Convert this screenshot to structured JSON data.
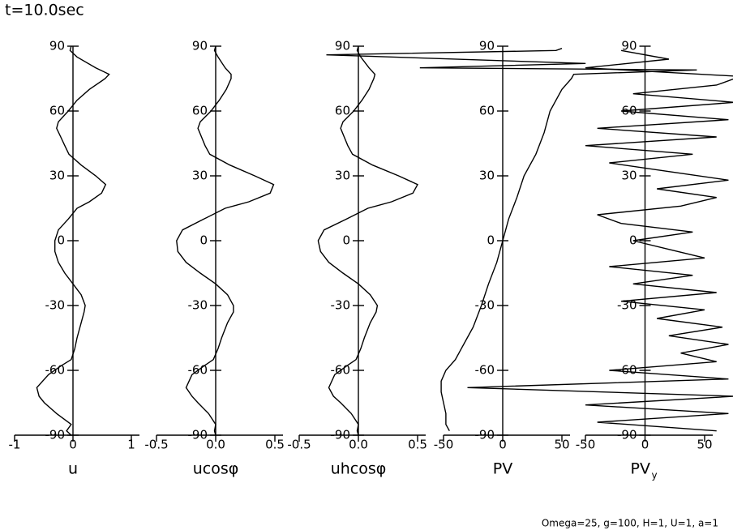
{
  "title": "t=10.0sec",
  "footer": "Omega=25, g=100, H=1, U=1, a=1",
  "chart_data": [
    {
      "type": "line",
      "xlabel": "u",
      "xlim": [
        -1,
        1
      ],
      "xticks": [
        -1,
        0,
        1
      ],
      "ylim": [
        -90,
        90
      ],
      "yticks": [
        -90,
        -60,
        -30,
        0,
        30,
        60,
        90
      ],
      "y": [
        90,
        88,
        85,
        80,
        77,
        75,
        70,
        65,
        60,
        55,
        52,
        48,
        44,
        40,
        35,
        30,
        26,
        22,
        18,
        15,
        10,
        5,
        0,
        -5,
        -10,
        -15,
        -20,
        -25,
        -30,
        -33,
        -38,
        -45,
        -50,
        -55,
        -58,
        -62,
        -68,
        -72,
        -75,
        -80,
        -85,
        -88,
        -90
      ],
      "values": [
        -0.03,
        -0.05,
        0.07,
        0.39,
        0.62,
        0.55,
        0.28,
        0.07,
        -0.08,
        -0.25,
        -0.28,
        -0.21,
        -0.14,
        -0.07,
        0.14,
        0.39,
        0.56,
        0.49,
        0.28,
        0.07,
        -0.08,
        -0.25,
        -0.31,
        -0.31,
        -0.25,
        -0.14,
        0,
        0.14,
        0.21,
        0.19,
        0.14,
        0.07,
        0.03,
        -0.03,
        -0.21,
        -0.42,
        -0.62,
        -0.58,
        -0.49,
        -0.28,
        -0.03,
        -0.11,
        -0.03
      ]
    },
    {
      "type": "line",
      "xlabel": "ucosφ",
      "xlim": [
        -0.5,
        0.5
      ],
      "xticks": [
        -0.5,
        {
          "value": 0,
          "label": "0.0"
        },
        0.5
      ],
      "ylim": [
        -90,
        90
      ],
      "yticks": [
        -90,
        -60,
        -30,
        0,
        30,
        60,
        90
      ],
      "y": [
        90,
        88,
        85,
        80,
        77,
        75,
        70,
        65,
        60,
        55,
        52,
        48,
        44,
        40,
        35,
        30,
        26,
        22,
        18,
        15,
        10,
        5,
        0,
        -5,
        -10,
        -15,
        -20,
        -25,
        -30,
        -33,
        -38,
        -45,
        -50,
        -55,
        -58,
        -62,
        -68,
        -72,
        -75,
        -80,
        -85,
        -88,
        -90
      ],
      "values": [
        0,
        -0.01,
        0.02,
        0.08,
        0.13,
        0.13,
        0.09,
        0.03,
        -0.04,
        -0.13,
        -0.15,
        -0.12,
        -0.09,
        -0.05,
        0.12,
        0.33,
        0.49,
        0.46,
        0.28,
        0.08,
        -0.1,
        -0.28,
        -0.33,
        -0.32,
        -0.25,
        -0.13,
        0,
        0.1,
        0.15,
        0.15,
        0.1,
        0.05,
        0.02,
        -0.02,
        -0.1,
        -0.2,
        -0.25,
        -0.2,
        -0.15,
        -0.06,
        0,
        -0.01,
        0
      ]
    },
    {
      "type": "line",
      "xlabel": "uhcosφ",
      "xlim": [
        -0.5,
        0.5
      ],
      "xticks": [
        -0.5,
        {
          "value": 0,
          "label": "0.0"
        },
        0.5
      ],
      "ylim": [
        -90,
        90
      ],
      "yticks": [
        -90,
        -60,
        -30,
        0,
        30,
        60,
        90
      ],
      "y": [
        90,
        88,
        85,
        80,
        77,
        75,
        70,
        65,
        60,
        55,
        52,
        48,
        44,
        40,
        35,
        30,
        26,
        22,
        18,
        15,
        10,
        5,
        0,
        -5,
        -10,
        -15,
        -20,
        -25,
        -30,
        -33,
        -38,
        -45,
        -50,
        -55,
        -58,
        -62,
        -68,
        -72,
        -75,
        -80,
        -85,
        -88,
        -90
      ],
      "values": [
        0,
        -0.01,
        0.02,
        0.09,
        0.14,
        0.13,
        0.09,
        0.03,
        -0.04,
        -0.13,
        -0.15,
        -0.12,
        -0.09,
        -0.05,
        0.12,
        0.34,
        0.5,
        0.46,
        0.28,
        0.08,
        -0.1,
        -0.29,
        -0.34,
        -0.32,
        -0.25,
        -0.13,
        0,
        0.1,
        0.16,
        0.15,
        0.1,
        0.05,
        0.02,
        -0.02,
        -0.1,
        -0.2,
        -0.25,
        -0.21,
        -0.15,
        -0.06,
        0,
        -0.01,
        0
      ]
    },
    {
      "type": "line",
      "xlabel": "PV",
      "xlim": [
        -50,
        50
      ],
      "xticks": [
        -50,
        0,
        50
      ],
      "ylim": [
        -90,
        90
      ],
      "yticks": [
        -90,
        -60,
        -30,
        0,
        30,
        60,
        90
      ],
      "y": [
        -88,
        -85,
        -80,
        -75,
        -70,
        -65,
        -60,
        -55,
        -50,
        -45,
        -40,
        -30,
        -20,
        -10,
        0,
        10,
        20,
        30,
        40,
        50,
        60,
        70,
        75,
        77,
        79,
        80,
        82,
        86,
        88,
        89
      ],
      "values": [
        -45,
        -48,
        -48,
        -50,
        -52,
        -52,
        -48,
        -40,
        -35,
        -30,
        -25,
        -18,
        -12,
        -5,
        0,
        5,
        12,
        18,
        28,
        35,
        40,
        50,
        58,
        60,
        164,
        -70,
        70,
        -149,
        45,
        50
      ]
    },
    {
      "type": "line",
      "xlabel": "PV",
      "xlabel_subscript": "y",
      "xlim": [
        -50,
        50
      ],
      "xticks": [
        -50,
        0,
        50
      ],
      "ylim": [
        -90,
        90
      ],
      "yticks": [
        -90,
        -60,
        -30,
        0,
        30,
        60,
        90
      ],
      "y": [
        -88,
        -84,
        -80,
        -76,
        -72,
        -68,
        -64,
        -60,
        -56,
        -52,
        -48,
        -44,
        -40,
        -36,
        -32,
        -28,
        -24,
        -20,
        -16,
        -12,
        -8,
        -4,
        0,
        4,
        8,
        12,
        16,
        20,
        24,
        28,
        32,
        36,
        40,
        44,
        48,
        52,
        56,
        60,
        64,
        68,
        72,
        76,
        80,
        84,
        88
      ],
      "values": [
        60,
        -40,
        70,
        -50,
        75,
        -149,
        70,
        -30,
        60,
        30,
        70,
        20,
        65,
        10,
        50,
        -20,
        60,
        -10,
        40,
        -30,
        50,
        20,
        -10,
        40,
        -20,
        -40,
        30,
        60,
        10,
        70,
        20,
        -30,
        40,
        -50,
        60,
        -40,
        70,
        -20,
        75,
        -10,
        60,
        80,
        -50,
        20,
        -20
      ]
    }
  ]
}
